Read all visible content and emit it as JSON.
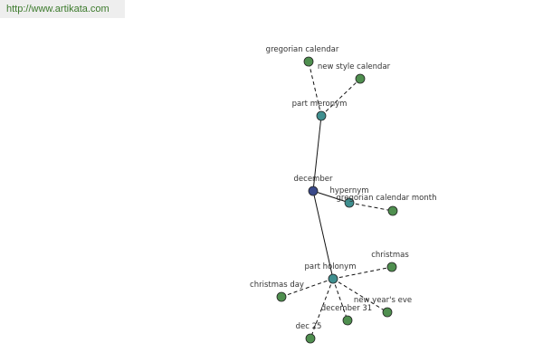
{
  "header": {
    "url": "http://www.artikata.com"
  },
  "nodes": [
    {
      "label": "december"
    },
    {
      "label": "part meronym"
    },
    {
      "label": "gregorian calendar"
    },
    {
      "label": "new style calendar"
    },
    {
      "label": "hypernym"
    },
    {
      "label": "gregorian calendar month"
    },
    {
      "label": "part holonym"
    },
    {
      "label": "christmas"
    },
    {
      "label": "christmas day"
    },
    {
      "label": "december 31"
    },
    {
      "label": "new year's eve"
    },
    {
      "label": "dec 25"
    }
  ]
}
